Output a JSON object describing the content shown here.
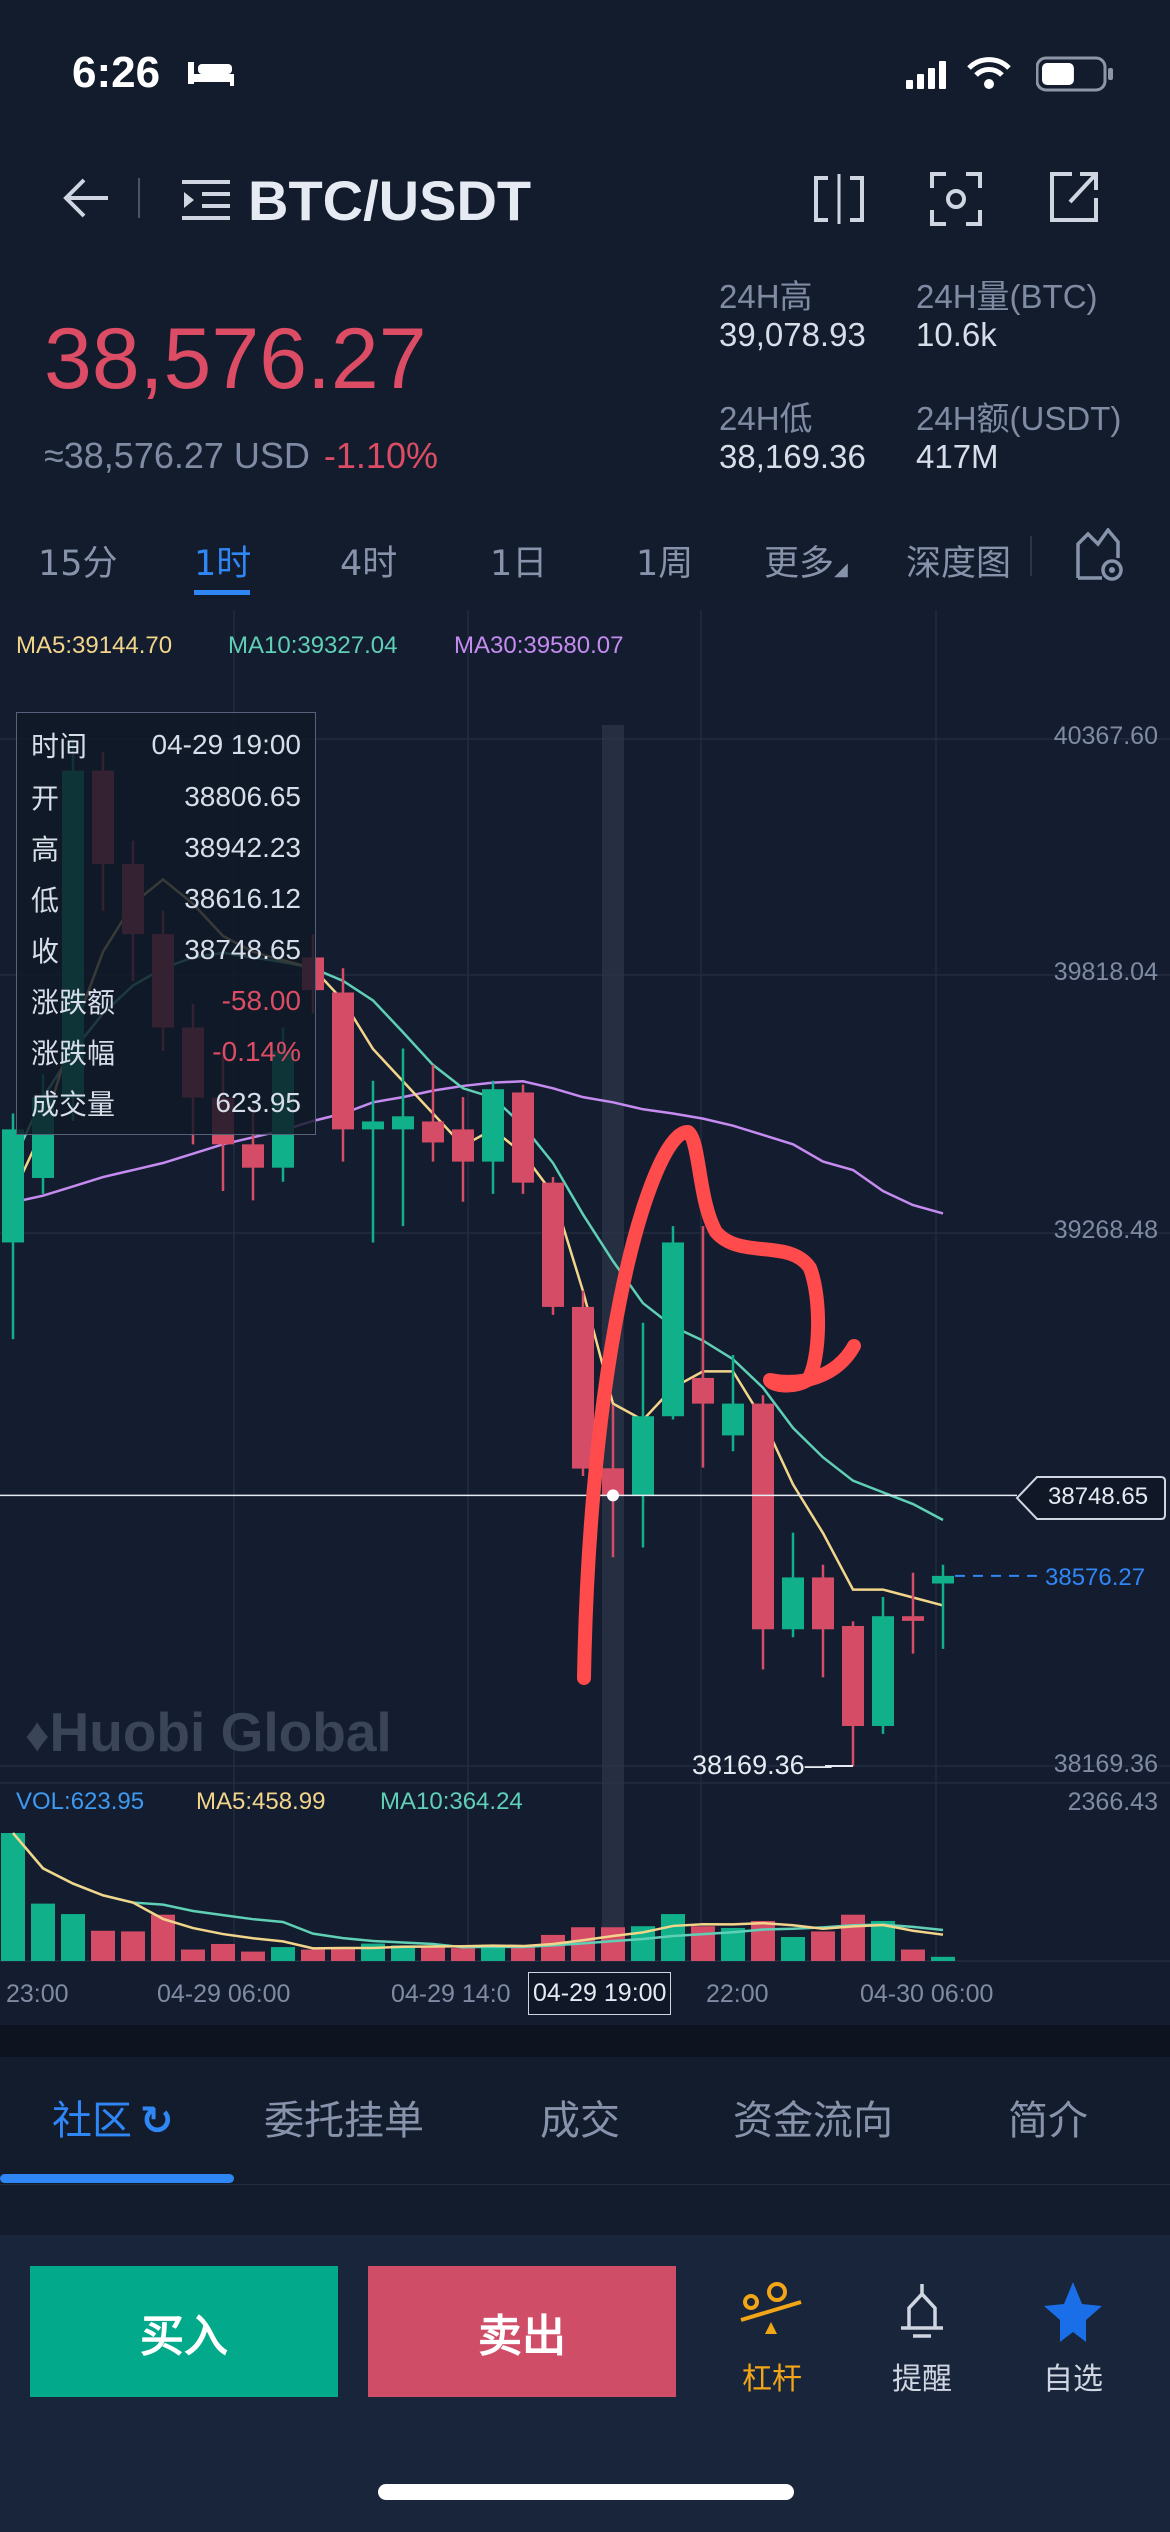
{
  "status_bar": {
    "time": "6:26",
    "battery_level": 0.55
  },
  "header": {
    "title": "BTC/USDT",
    "icons": [
      "back-arrow-icon",
      "menu-list-icon",
      "split-view-icon",
      "screenshot-icon",
      "share-icon"
    ]
  },
  "ticker": {
    "last_price": "38,576.27",
    "usd_equiv": "≈38,576.27 USD",
    "change_pct": "-1.10%",
    "stats": [
      {
        "label": "24H高",
        "value": "39,078.93"
      },
      {
        "label": "24H量(BTC)",
        "value": "10.6k"
      },
      {
        "label": "24H低",
        "value": "38,169.36"
      },
      {
        "label": "24H额(USDT)",
        "value": "417M"
      }
    ]
  },
  "timeframes": [
    {
      "label": "15分"
    },
    {
      "label": "1时",
      "active": true
    },
    {
      "label": "4时"
    },
    {
      "label": "1日"
    },
    {
      "label": "1周"
    },
    {
      "label": "更多"
    },
    {
      "label": "深度图"
    }
  ],
  "colors": {
    "up": "#0fb08a",
    "down": "#d54c66",
    "ma5": "#f2d58a",
    "ma10": "#5fcfb6",
    "ma30": "#c58bf0",
    "accent": "#2f86f5",
    "annotation": "#ff4b4b"
  },
  "chart_legend": {
    "ma5": "MA5:39144.70",
    "ma10": "MA10:39327.04",
    "ma30": "MA30:39580.07"
  },
  "tooltip": [
    {
      "label": "时间",
      "value": "04-29 19:00"
    },
    {
      "label": "开",
      "value": "38806.65"
    },
    {
      "label": "高",
      "value": "38942.23"
    },
    {
      "label": "低",
      "value": "38616.12"
    },
    {
      "label": "收",
      "value": "38748.65"
    },
    {
      "label": "涨跌额",
      "value": "-58.00",
      "negative": true
    },
    {
      "label": "涨跌幅",
      "value": "-0.14%",
      "negative": true
    },
    {
      "label": "成交量",
      "value": "623.95"
    }
  ],
  "watermark": "Huobi Global",
  "chart_data": {
    "type": "candlestick",
    "price_axis_labels": [
      "40367.60",
      "39818.04",
      "39268.48",
      "38169.36"
    ],
    "ylim": [
      38169.36,
      40367.6
    ],
    "crosshair_price": "38748.65",
    "current_price": "38576.27",
    "low_marker": "38169.36—",
    "selected_index": 20,
    "candles": [
      [
        39290,
        39566,
        39083,
        39532
      ],
      [
        39428,
        39650,
        39394,
        39601
      ],
      [
        39600,
        40367.6,
        39550,
        40300
      ],
      [
        40300,
        40340,
        40000,
        40100
      ],
      [
        40100,
        40150,
        39850,
        39950
      ],
      [
        39950,
        40000,
        39700,
        39750
      ],
      [
        39750,
        39800,
        39500,
        39600
      ],
      [
        39600,
        39700,
        39400,
        39500
      ],
      [
        39500,
        39580,
        39380,
        39450
      ],
      [
        39450,
        39750,
        39420,
        39700
      ],
      [
        39900,
        39950,
        39780,
        39830
      ],
      [
        39825,
        39877,
        39463,
        39532
      ],
      [
        39532,
        39636,
        39290,
        39549
      ],
      [
        39532,
        39705,
        39325,
        39560
      ],
      [
        39549,
        39670,
        39463,
        39504
      ],
      [
        39532,
        39601,
        39377,
        39463
      ],
      [
        39463,
        39636,
        39394,
        39618
      ],
      [
        39611,
        39628,
        39394,
        39418
      ],
      [
        39418,
        39430,
        39135,
        39152
      ],
      [
        39152,
        39187,
        38790,
        38806
      ],
      [
        38806.65,
        38942.23,
        38616.12,
        38748.65
      ],
      [
        38748,
        39118,
        38637,
        38918
      ],
      [
        38918,
        39325,
        38911,
        39290
      ],
      [
        39000,
        39325,
        38808,
        38945
      ],
      [
        38877,
        39049,
        38843,
        38945
      ],
      [
        38945,
        38963,
        38376,
        38462
      ],
      [
        38462,
        38669,
        38445,
        38573
      ],
      [
        38573,
        38600,
        38359,
        38462
      ],
      [
        38469,
        38479,
        38169.36,
        38255
      ],
      [
        38255,
        38531,
        38238,
        38490
      ],
      [
        38490,
        38583,
        38410,
        38480
      ],
      [
        38560,
        38600,
        38420,
        38576.27
      ]
    ],
    "ma5": [
      39394,
      39532,
      39739,
      39912,
      40015,
      40067,
      40015,
      39946,
      39912,
      39894,
      39877,
      39808,
      39704,
      39635,
      39566,
      39497,
      39532,
      39480,
      39394,
      39186,
      38945,
      38910,
      38979,
      39014,
      39014,
      38910,
      38772,
      38668,
      38547,
      38547,
      38530,
      38513
    ],
    "ma10": [
      39463,
      39600,
      39700,
      39780,
      39840,
      39877,
      39900,
      39910,
      39900,
      39890,
      39877,
      39850,
      39808,
      39740,
      39670,
      39620,
      39600,
      39540,
      39460,
      39350,
      39250,
      39160,
      39110,
      39080,
      39040,
      38979,
      38893,
      38830,
      38780,
      38755,
      38730,
      38696
    ],
    "ma30": [
      39376,
      39390,
      39410,
      39430,
      39445,
      39460,
      39480,
      39500,
      39515,
      39530,
      39550,
      39566,
      39590,
      39601,
      39615,
      39625,
      39632,
      39635,
      39620,
      39601,
      39590,
      39575,
      39566,
      39555,
      39540,
      39520,
      39500,
      39463,
      39445,
      39400,
      39370,
      39352
    ],
    "volume": {
      "legend": {
        "vol": "VOL:623.95",
        "ma5": "MA5:458.99",
        "ma10": "MA10:364.24"
      },
      "axis_max_label": "2366.43",
      "ymax": 2366.43,
      "values": [
        2366,
        1061,
        868,
        559,
        547,
        856,
        212,
        315,
        174,
        257,
        212,
        238,
        322,
        289,
        276,
        238,
        302,
        276,
        482,
        624,
        623.95,
        643,
        868,
        643,
        611,
        740,
        444,
        547,
        856,
        740,
        212,
        77
      ]
    },
    "time_labels": [
      "23:00",
      "04-29 06:00",
      "04-29 14:0",
      "22:00",
      "04-30 06:00"
    ],
    "selected_time": "04-29 19:00"
  },
  "bottom_tabs": [
    {
      "label": "社区",
      "active": true
    },
    {
      "label": "委托挂单"
    },
    {
      "label": "成交"
    },
    {
      "label": "资金流向"
    },
    {
      "label": "简介"
    }
  ],
  "actions": {
    "buy": "买入",
    "sell": "卖出",
    "leverage": "杠杆",
    "alert": "提醒",
    "favorite": "自选"
  }
}
